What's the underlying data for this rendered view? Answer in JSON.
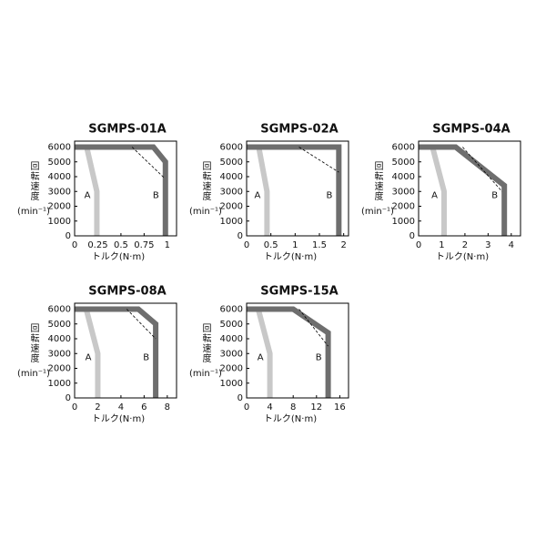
{
  "chart_data": [
    {
      "type": "line",
      "title": "SGMPS-01A",
      "ylabel": "回転速度",
      "ylabel_unit": "(min⁻¹)",
      "xlabel": "トルク(N·m)",
      "xlim": [
        0,
        1.1
      ],
      "xticks": [
        0,
        0.25,
        0.5,
        0.75,
        1
      ],
      "ylim": [
        0,
        6400
      ],
      "yticks": [
        0,
        1000,
        2000,
        3000,
        4000,
        5000,
        6000
      ],
      "series": [
        {
          "name": "A",
          "color": "#c8c8c8",
          "x": [
            0,
            0.13,
            0.24,
            0.24
          ],
          "values": [
            6000,
            6000,
            3000,
            0
          ]
        },
        {
          "name": "B",
          "color": "#6e6e6e",
          "x": [
            0,
            0.85,
            0.98,
            0.98
          ],
          "values": [
            6000,
            6000,
            5000,
            0
          ]
        },
        {
          "color": "#000000",
          "dash": true,
          "x": [
            0.62,
            0.97
          ],
          "values": [
            6000,
            3900
          ]
        }
      ]
    },
    {
      "type": "line",
      "title": "SGMPS-02A",
      "ylabel": "回転速度",
      "ylabel_unit": "(min⁻¹)",
      "xlabel": "トルク(N·m)",
      "xlim": [
        0,
        2.1
      ],
      "xticks": [
        0,
        0.5,
        1,
        1.5,
        2
      ],
      "ylim": [
        0,
        6400
      ],
      "yticks": [
        0,
        1000,
        2000,
        3000,
        4000,
        5000,
        6000
      ],
      "series": [
        {
          "name": "A",
          "color": "#c8c8c8",
          "x": [
            0,
            0.25,
            0.42,
            0.42
          ],
          "values": [
            6000,
            6000,
            3000,
            0
          ]
        },
        {
          "name": "B",
          "color": "#6e6e6e",
          "x": [
            0,
            1.9,
            1.9
          ],
          "values": [
            6000,
            6000,
            0
          ]
        },
        {
          "color": "#000000",
          "dash": true,
          "x": [
            1.08,
            1.9
          ],
          "values": [
            6000,
            4300
          ]
        }
      ]
    },
    {
      "type": "line",
      "title": "SGMPS-04A",
      "ylabel": "回転速度",
      "ylabel_unit": "(min⁻¹)",
      "xlabel": "トルク(N·m)",
      "xlim": [
        0,
        4.4
      ],
      "xticks": [
        0,
        1,
        2,
        3,
        4
      ],
      "ylim": [
        0,
        6400
      ],
      "yticks": [
        0,
        1000,
        2000,
        3000,
        4000,
        5000,
        6000
      ],
      "series": [
        {
          "name": "A",
          "color": "#c8c8c8",
          "x": [
            0,
            0.6,
            1.1,
            1.1
          ],
          "values": [
            6000,
            6000,
            3000,
            0
          ]
        },
        {
          "name": "B",
          "color": "#6e6e6e",
          "x": [
            0,
            1.6,
            3.7,
            3.7
          ],
          "values": [
            6000,
            6000,
            3400,
            0
          ]
        },
        {
          "color": "#000000",
          "dash": true,
          "x": [
            1.9,
            3.6
          ],
          "values": [
            6000,
            3000
          ]
        }
      ]
    },
    {
      "type": "line",
      "title": "SGMPS-08A",
      "ylabel": "回転速度",
      "ylabel_unit": "(min⁻¹)",
      "xlabel": "トルク(N·m)",
      "xlim": [
        0,
        8.8
      ],
      "xticks": [
        0,
        2,
        4,
        6,
        8
      ],
      "ylim": [
        0,
        6400
      ],
      "yticks": [
        0,
        1000,
        2000,
        3000,
        4000,
        5000,
        6000
      ],
      "series": [
        {
          "name": "A",
          "color": "#c8c8c8",
          "x": [
            0,
            1.0,
            2.0,
            2.0
          ],
          "values": [
            6000,
            6000,
            3000,
            0
          ]
        },
        {
          "name": "B",
          "color": "#6e6e6e",
          "x": [
            0,
            5.5,
            7,
            7
          ],
          "values": [
            6000,
            6000,
            5000,
            0
          ]
        },
        {
          "color": "#000000",
          "dash": true,
          "x": [
            4.5,
            7
          ],
          "values": [
            6000,
            4000
          ]
        }
      ]
    },
    {
      "type": "line",
      "title": "SGMPS-15A",
      "ylabel": "回転速度",
      "ylabel_unit": "(min⁻¹)",
      "xlabel": "トルク(N·m)",
      "xlim": [
        0,
        17.5
      ],
      "xticks": [
        0,
        4,
        8,
        12,
        16
      ],
      "ylim": [
        0,
        6400
      ],
      "yticks": [
        0,
        1000,
        2000,
        3000,
        4000,
        5000,
        6000
      ],
      "series": [
        {
          "name": "A",
          "color": "#c8c8c8",
          "x": [
            0,
            2,
            4,
            4
          ],
          "values": [
            6000,
            6000,
            3000,
            0
          ]
        },
        {
          "name": "B",
          "color": "#6e6e6e",
          "x": [
            0,
            8,
            14,
            14
          ],
          "values": [
            6000,
            6000,
            4400,
            0
          ]
        },
        {
          "color": "#000000",
          "dash": true,
          "x": [
            9,
            14
          ],
          "values": [
            6000,
            3500
          ]
        }
      ]
    }
  ]
}
